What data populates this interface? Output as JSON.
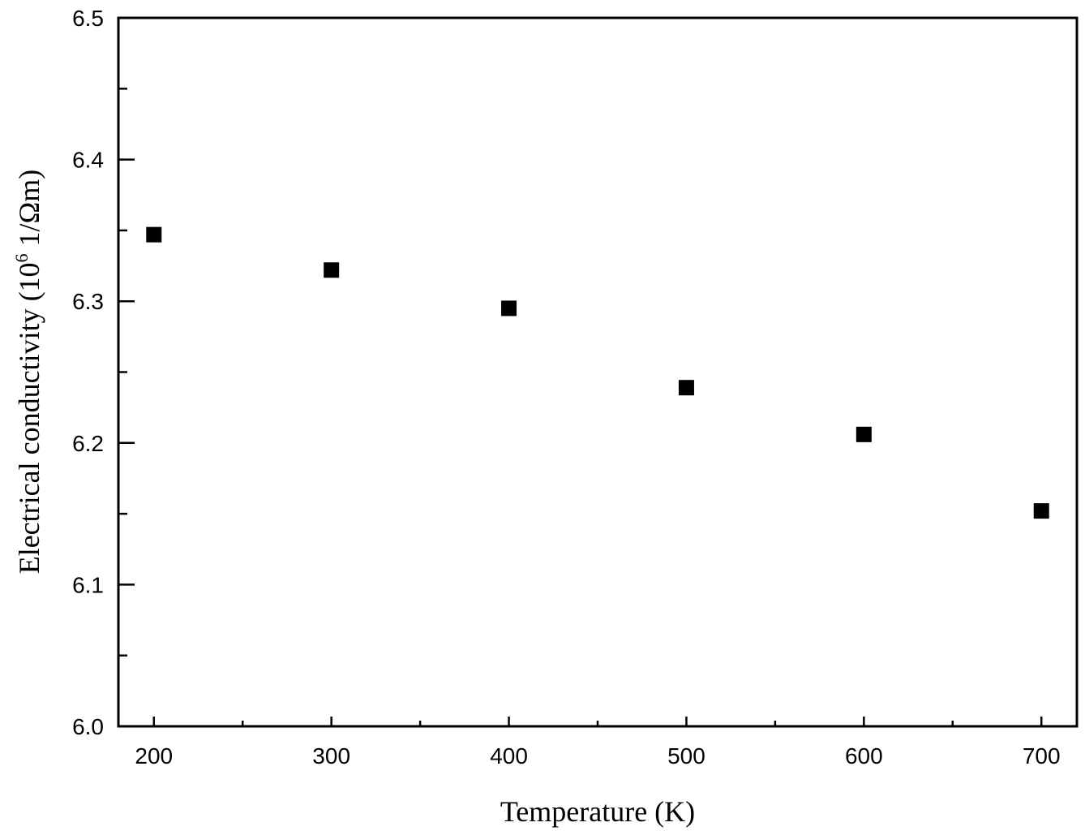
{
  "chart_data": {
    "type": "scatter",
    "title": "",
    "xlabel": "Temperature (K)",
    "ylabel_main": "Electrical conductivity (10",
    "ylabel_sup": "6",
    "ylabel_tail": " 1/Ωm)",
    "xlim": [
      180,
      720
    ],
    "ylim": [
      6.0,
      6.5
    ],
    "xticks": [
      200,
      300,
      400,
      500,
      600,
      700
    ],
    "yticks": [
      "6.0",
      "6.1",
      "6.2",
      "6.3",
      "6.4",
      "6.5"
    ],
    "grid": false,
    "marker": "square",
    "color": "#000000",
    "series": [
      {
        "x": [
          200,
          300,
          400,
          500,
          600,
          700
        ],
        "y": [
          6.347,
          6.322,
          6.295,
          6.239,
          6.206,
          6.152
        ]
      }
    ]
  }
}
